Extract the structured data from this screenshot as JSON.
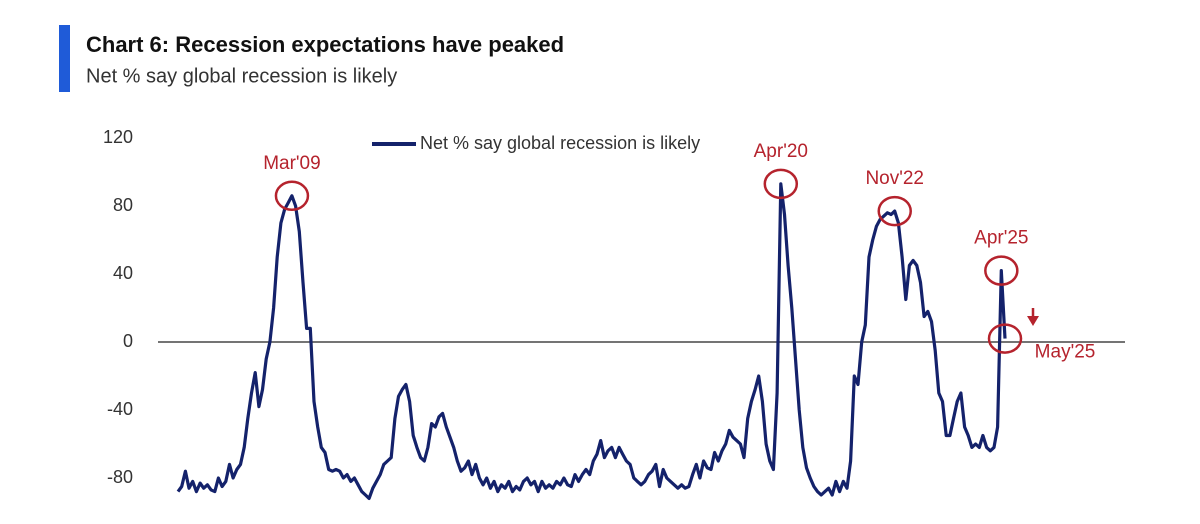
{
  "chart_data": {
    "type": "line",
    "title": "Chart 6: Recession expectations have peaked",
    "subtitle": "Net % say global recession is likely",
    "ylim": [
      -95,
      120
    ],
    "yticks": [
      -80,
      -40,
      0,
      40,
      80,
      120
    ],
    "legend": "top",
    "categories": [
      null,
      null,
      null,
      null,
      null,
      null,
      null,
      null,
      null,
      null,
      null,
      null,
      null,
      null,
      null,
      null,
      null,
      null,
      null,
      null,
      null,
      null,
      null,
      null,
      null,
      null,
      null,
      null,
      null,
      null,
      null,
      "Mar'09",
      null,
      null,
      null,
      null,
      null,
      null,
      null,
      null,
      null,
      null,
      null,
      null,
      null,
      null,
      null,
      null,
      null,
      null,
      null,
      null,
      null,
      null,
      null,
      null,
      null,
      null,
      null,
      null,
      null,
      null,
      null,
      null,
      null,
      null,
      null,
      null,
      null,
      null,
      null,
      null,
      null,
      null,
      null,
      null,
      null,
      null,
      null,
      null,
      null,
      null,
      null,
      null,
      null,
      null,
      null,
      null,
      null,
      null,
      null,
      null,
      null,
      null,
      null,
      null,
      null,
      null,
      null,
      null,
      null,
      null,
      null,
      null,
      null,
      null,
      null,
      null,
      null,
      null,
      null,
      null,
      null,
      null,
      null,
      null,
      null,
      null,
      null,
      null,
      null,
      null,
      null,
      null,
      null,
      null,
      null,
      null,
      null,
      null,
      null,
      null,
      null,
      null,
      null,
      null,
      null,
      null,
      null,
      null,
      null,
      null,
      null,
      null,
      null,
      null,
      null,
      null,
      null,
      null,
      null,
      null,
      null,
      null,
      null,
      null,
      null,
      null,
      null,
      null,
      null,
      null,
      null,
      null,
      "Apr'20",
      null,
      null,
      null,
      null,
      null,
      null,
      null,
      null,
      null,
      null,
      null,
      null,
      null,
      null,
      null,
      null,
      null,
      null,
      null,
      null,
      null,
      null,
      null,
      null,
      null,
      null,
      null,
      null,
      null,
      null,
      "Nov'22",
      null,
      null,
      null,
      null,
      null,
      null,
      null,
      null,
      null,
      null,
      null,
      null,
      null,
      null,
      null,
      null,
      null,
      null,
      null,
      null,
      null,
      null,
      null,
      null,
      null,
      null,
      null,
      null,
      "Apr'25",
      "May'25"
    ],
    "series": [
      {
        "name": "Net % say global recession is likely",
        "color": "#14226b",
        "values": [
          -88,
          -85,
          -76,
          -86,
          -82,
          -88,
          -83,
          -86,
          -84,
          -87,
          -88,
          -80,
          -85,
          -82,
          -72,
          -80,
          -75,
          -72,
          -62,
          -45,
          -30,
          -18,
          -38,
          -28,
          -10,
          0,
          20,
          50,
          70,
          78,
          82,
          86,
          80,
          65,
          35,
          8,
          8,
          -35,
          -50,
          -62,
          -65,
          -75,
          -76,
          -75,
          -76,
          -80,
          -78,
          -82,
          -80,
          -84,
          -88,
          -90,
          -92,
          -86,
          -82,
          -78,
          -72,
          -70,
          -68,
          -45,
          -32,
          -28,
          -25,
          -35,
          -55,
          -62,
          -68,
          -70,
          -62,
          -48,
          -50,
          -44,
          -42,
          -50,
          -56,
          -62,
          -70,
          -76,
          -74,
          -70,
          -78,
          -72,
          -80,
          -84,
          -80,
          -86,
          -82,
          -88,
          -84,
          -86,
          -82,
          -88,
          -85,
          -87,
          -82,
          -80,
          -84,
          -82,
          -88,
          -82,
          -86,
          -84,
          -86,
          -82,
          -84,
          -80,
          -84,
          -85,
          -78,
          -82,
          -78,
          -75,
          -78,
          -70,
          -66,
          -58,
          -68,
          -64,
          -62,
          -68,
          -62,
          -66,
          -70,
          -72,
          -80,
          -82,
          -84,
          -82,
          -78,
          -76,
          -72,
          -85,
          -75,
          -80,
          -82,
          -84,
          -86,
          -84,
          -86,
          -85,
          -78,
          -72,
          -80,
          -70,
          -74,
          -75,
          -65,
          -70,
          -64,
          -60,
          -52,
          -56,
          -58,
          -60,
          -68,
          -45,
          -35,
          -28,
          -20,
          -35,
          -60,
          -70,
          -75,
          -30,
          93,
          75,
          45,
          20,
          -10,
          -40,
          -62,
          -74,
          -80,
          -85,
          -88,
          -90,
          -88,
          -86,
          -90,
          -82,
          -88,
          -82,
          -86,
          -70,
          -20,
          -25,
          0,
          10,
          50,
          60,
          68,
          72,
          74,
          76,
          75,
          77,
          70,
          50,
          25,
          45,
          48,
          45,
          35,
          15,
          18,
          12,
          -5,
          -30,
          -35,
          -55,
          -55,
          -45,
          -35,
          -30,
          -50,
          -55,
          -62,
          -60,
          -62,
          -55,
          -62,
          -64,
          -62,
          -50,
          42,
          2
        ]
      }
    ],
    "annotation_color": "#b5232d"
  }
}
